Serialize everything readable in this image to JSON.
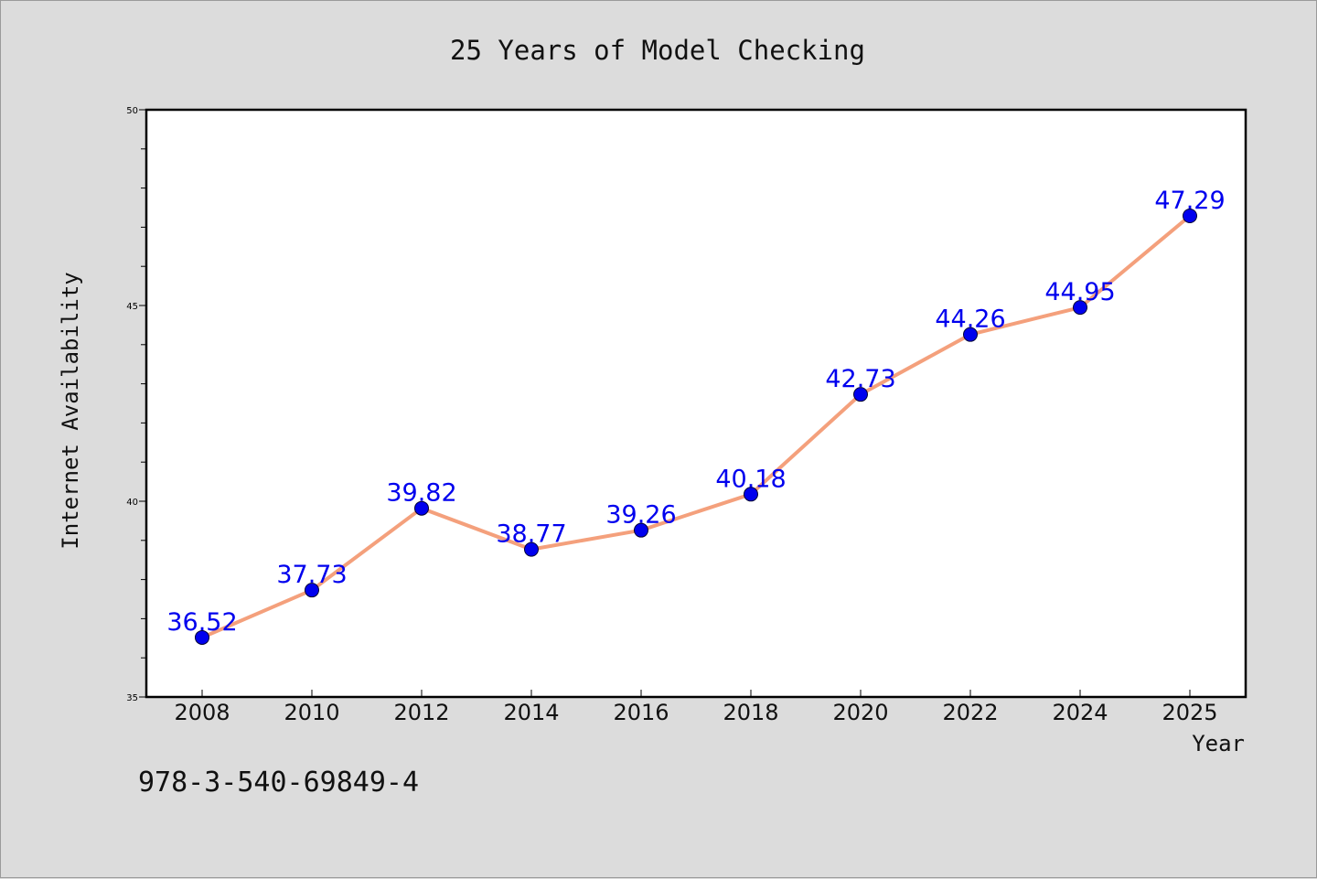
{
  "chart_data": {
    "type": "line",
    "title": "25 Years of Model Checking",
    "xlabel": "Year",
    "ylabel": "Internet Availability",
    "categories": [
      "2008",
      "2010",
      "2012",
      "2014",
      "2016",
      "2018",
      "2020",
      "2022",
      "2024",
      "2025"
    ],
    "series": [
      {
        "values": [
          36.52,
          37.73,
          39.82,
          38.77,
          39.26,
          40.18,
          42.73,
          44.26,
          44.95,
          47.29
        ],
        "data_labels": [
          "36.52",
          "37.73",
          "39.82",
          "38.77",
          "39.26",
          "40.18",
          "42.73",
          "44.26",
          "44.95",
          "47.29"
        ],
        "line_color": "#f4a07c",
        "marker_color": "#0000ee"
      }
    ],
    "ylim": [
      35,
      50
    ],
    "y_ticks": [
      "35",
      "40",
      "45",
      "50"
    ],
    "y_minor_step": 1,
    "grid": false,
    "legend": "none",
    "label_color": "#0000ee"
  },
  "footer_text": "978-3-540-69849-4"
}
